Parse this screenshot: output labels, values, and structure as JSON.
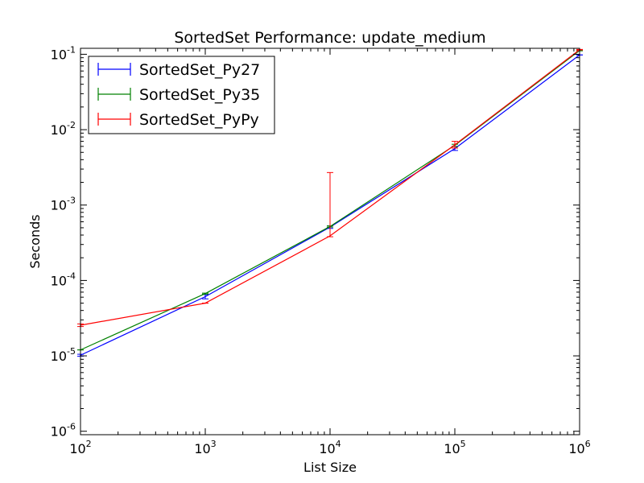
{
  "chart_data": {
    "type": "line",
    "title": "SortedSet Performance: update_medium",
    "xlabel": "List Size",
    "ylabel": "Seconds",
    "x_scale": "log",
    "y_scale": "log",
    "xlim": [
      100,
      1000000
    ],
    "ylim": [
      9e-07,
      0.12
    ],
    "x_ticks": [
      {
        "value": 100,
        "base": "10",
        "exp": "2"
      },
      {
        "value": 1000,
        "base": "10",
        "exp": "3"
      },
      {
        "value": 10000,
        "base": "10",
        "exp": "4"
      },
      {
        "value": 100000,
        "base": "10",
        "exp": "5"
      },
      {
        "value": 1000000,
        "base": "10",
        "exp": "6"
      }
    ],
    "y_ticks": [
      {
        "value": 1e-06,
        "base": "10",
        "exp": "-6"
      },
      {
        "value": 1e-05,
        "base": "10",
        "exp": "-5"
      },
      {
        "value": 0.0001,
        "base": "10",
        "exp": "-4"
      },
      {
        "value": 0.001,
        "base": "10",
        "exp": "-3"
      },
      {
        "value": 0.01,
        "base": "10",
        "exp": "-2"
      },
      {
        "value": 0.1,
        "base": "10",
        "exp": "-1"
      }
    ],
    "grid": false,
    "legend_position": "top-left",
    "x": [
      100,
      1000,
      10000,
      100000,
      1000000
    ],
    "series": [
      {
        "name": "SortedSet_Py27",
        "color": "#0000ff",
        "values": [
          1.02e-05,
          6.1e-05,
          0.00051,
          0.0056,
          0.098
        ],
        "err_low": [
          9.9e-06,
          5.7e-05,
          0.00049,
          0.0053,
          0.098
        ],
        "err_high": [
          1.05e-05,
          6.5e-05,
          0.00053,
          0.006,
          0.098
        ]
      },
      {
        "name": "SortedSet_Py35",
        "color": "#008000",
        "values": [
          1.2e-05,
          6.7e-05,
          0.00052,
          0.0062,
          0.112
        ],
        "err_low": [
          1.2e-05,
          6.6e-05,
          0.00051,
          0.006,
          0.111
        ],
        "err_high": [
          1.2e-05,
          6.8e-05,
          0.00053,
          0.0064,
          0.113
        ]
      },
      {
        "name": "SortedSet_PyPy",
        "color": "#ff0000",
        "values": [
          2.55e-05,
          5e-05,
          0.00039,
          0.0063,
          0.115
        ],
        "err_low": [
          2.45e-05,
          5e-05,
          0.00038,
          0.0057,
          0.114
        ],
        "err_high": [
          2.65e-05,
          5e-05,
          0.0027,
          0.007,
          0.116
        ]
      }
    ]
  }
}
